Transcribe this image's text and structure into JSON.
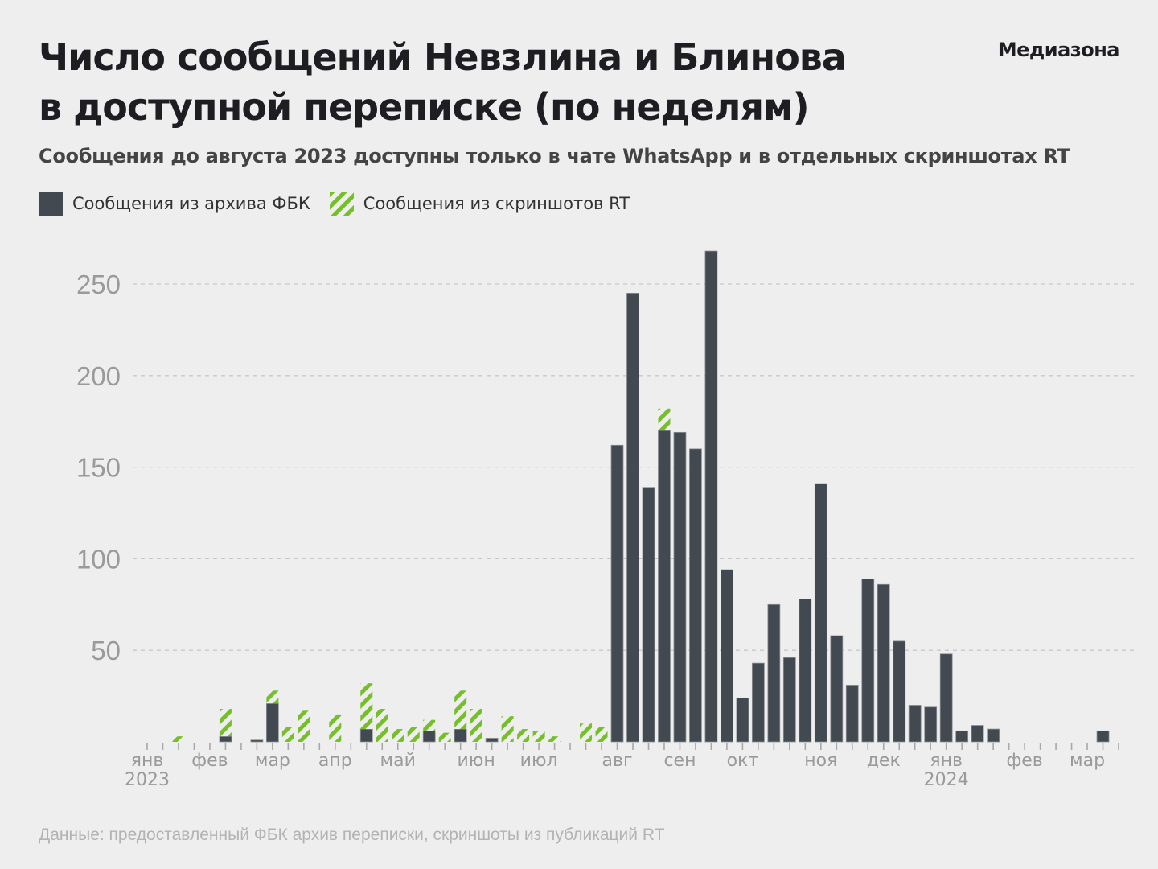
{
  "header": {
    "title_line1": "Число сообщений Невзлина и Блинова",
    "title_line2": "в доступной переписке (по неделям)",
    "logo": "Медиазона",
    "subtitle": "Сообщения до августа 2023 доступны только в чате WhatsApp и в отдельных скриншотах RT"
  },
  "legend": {
    "fbk_label": "Сообщения из архива ФБК",
    "rt_label": "Сообщения из скриншотов RT"
  },
  "colors": {
    "fbk": "#434950",
    "rt": "#76be2a",
    "grid": "#c8c8c8",
    "axis_text": "#9a9a9a",
    "background": "#eeeeee"
  },
  "footer": "Данные: предоставленный ФБК архив переписки, скриншоты из публикаций RT",
  "chart_data": {
    "type": "bar",
    "stacked": true,
    "title": "Число сообщений Невзлина и Блинова в доступной переписке (по неделям)",
    "xlabel": "",
    "ylabel": "",
    "ylim": [
      0,
      275
    ],
    "yticks": [
      50,
      100,
      150,
      200,
      250
    ],
    "grid": true,
    "legend_position": "top-left",
    "week_count": 63,
    "month_labels": [
      {
        "week": 0,
        "label": "янв",
        "year": "2023"
      },
      {
        "week": 4,
        "label": "фев"
      },
      {
        "week": 8,
        "label": "мар"
      },
      {
        "week": 12,
        "label": "апр"
      },
      {
        "week": 16,
        "label": "май"
      },
      {
        "week": 21,
        "label": "июн"
      },
      {
        "week": 25,
        "label": "июл"
      },
      {
        "week": 30,
        "label": "авг"
      },
      {
        "week": 34,
        "label": "сен"
      },
      {
        "week": 38,
        "label": "окт"
      },
      {
        "week": 43,
        "label": "ноя"
      },
      {
        "week": 47,
        "label": "дек"
      },
      {
        "week": 51,
        "label": "янв",
        "year": "2024"
      },
      {
        "week": 56,
        "label": "фев"
      },
      {
        "week": 60,
        "label": "мар"
      }
    ],
    "series": [
      {
        "name": "Сообщения из архива ФБК",
        "values": [
          0,
          0,
          0,
          0,
          0,
          3,
          0,
          1,
          21,
          0,
          0,
          0,
          0,
          0,
          7,
          0,
          0,
          0,
          6,
          0,
          7,
          0,
          2,
          0,
          0,
          0,
          0,
          0,
          0,
          0,
          162,
          245,
          139,
          170,
          169,
          160,
          268,
          94,
          24,
          43,
          75,
          46,
          78,
          141,
          58,
          31,
          89,
          86,
          55,
          20,
          19,
          48,
          6,
          9,
          7,
          0,
          0,
          0,
          0,
          0,
          0,
          6,
          0
        ]
      },
      {
        "name": "Сообщения из скриншотов RT",
        "values": [
          0,
          0,
          3,
          0,
          0,
          15,
          0,
          0,
          7,
          8,
          17,
          0,
          15,
          0,
          25,
          18,
          7,
          8,
          6,
          5,
          21,
          18,
          0,
          14,
          7,
          6,
          3,
          0,
          10,
          8,
          0,
          0,
          0,
          12,
          0,
          0,
          0,
          0,
          0,
          0,
          0,
          0,
          0,
          0,
          0,
          0,
          0,
          0,
          0,
          0,
          0,
          0,
          0,
          0,
          0,
          0,
          0,
          0,
          0,
          0,
          0,
          0,
          0
        ]
      }
    ]
  }
}
